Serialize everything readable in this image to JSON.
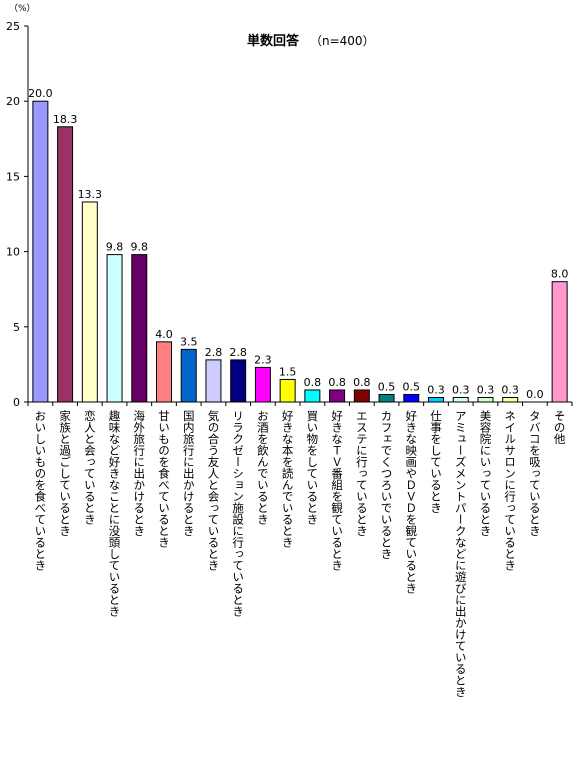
{
  "chart_data": {
    "type": "bar",
    "title": "単数回答",
    "subtitle": "（n=400）",
    "unit": "（%）",
    "ylim": [
      0,
      25
    ],
    "yticks": [
      "0",
      "5",
      "10",
      "15",
      "20",
      "25"
    ],
    "grid": false,
    "categories": [
      "おいしいものを食べているとき",
      "家族と過ごしているとき",
      "恋人と会っているとき",
      "趣味など好きなことに没頭しているとき",
      "海外旅行に出かけるとき",
      "甘いものを食べているとき",
      "国内旅行に出かけるとき",
      "気の合う友人と会っているとき",
      "リラクゼーション施設に行っているとき",
      "お酒を飲んでいるとき",
      "好きな本を読んでいるとき",
      "買い物をしているとき",
      "好きなＴＶ番組を観ているとき",
      "エステに行っているとき",
      "カフェでくつろいでいるとき",
      "好きな映画やＤＶＤを観ているとき",
      "仕事をしているとき",
      "アミューズメントパークなどに遊びに出かけているとき",
      "美容院にいっているとき",
      "ネイルサロンに行っているとき",
      "タバコを吸っているとき",
      "その他"
    ],
    "values": [
      20.0,
      18.3,
      13.3,
      9.8,
      9.8,
      4.0,
      3.5,
      2.8,
      2.8,
      2.3,
      1.5,
      0.8,
      0.8,
      0.8,
      0.5,
      0.5,
      0.3,
      0.3,
      0.3,
      0.3,
      0.0,
      8.0
    ],
    "value_labels": [
      "20.0",
      "18.3",
      "13.3",
      "9.8",
      "9.8",
      "4.0",
      "3.5",
      "2.8",
      "2.8",
      "2.3",
      "1.5",
      "0.8",
      "0.8",
      "0.8",
      "0.5",
      "0.5",
      "0.3",
      "0.3",
      "0.3",
      "0.3",
      "0.0",
      "8.0"
    ],
    "colors": [
      "#9999ff",
      "#993366",
      "#ffffcc",
      "#ccffff",
      "#660066",
      "#ff8080",
      "#0066cc",
      "#ccccff",
      "#000080",
      "#ff00ff",
      "#ffff00",
      "#00ffff",
      "#800080",
      "#800000",
      "#008080",
      "#0000ff",
      "#00ccff",
      "#ccffff",
      "#ccffcc",
      "#ffff99",
      "#99ccff",
      "#ff99cc"
    ]
  }
}
